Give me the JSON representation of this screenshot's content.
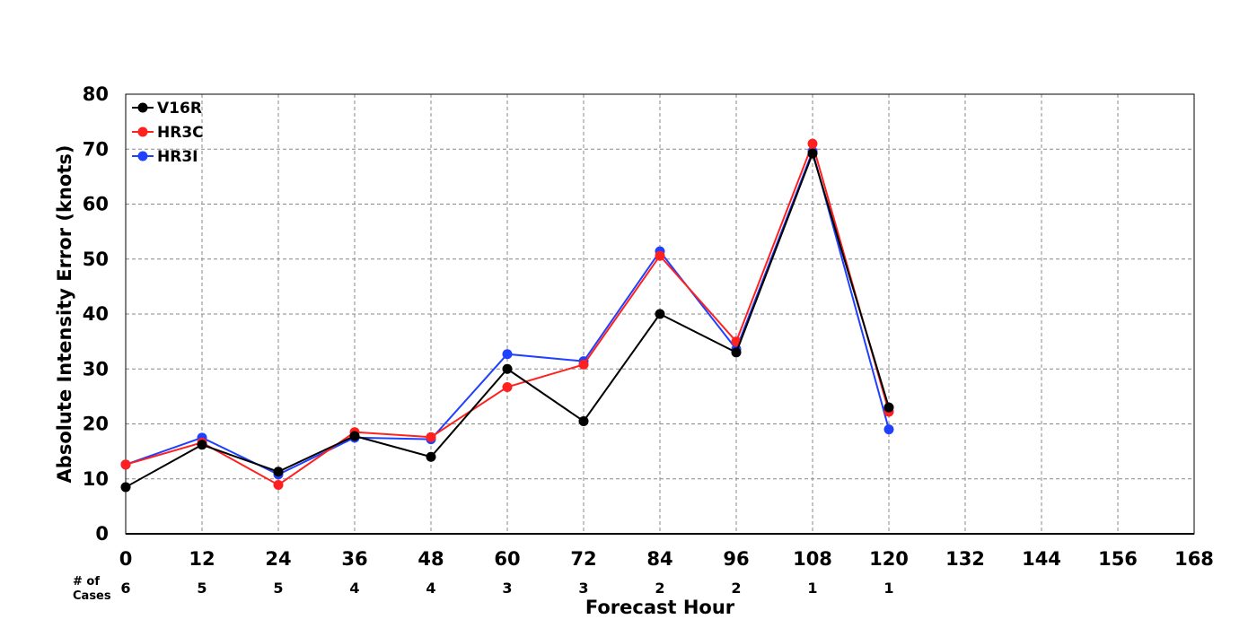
{
  "chart_data": {
    "type": "line",
    "title": "",
    "xlabel": "Forecast Hour",
    "ylabel": "Absolute Intensity Error (knots)",
    "xlim": [
      0,
      168
    ],
    "ylim": [
      0,
      80
    ],
    "x_ticks": [
      "0",
      "12",
      "24",
      "36",
      "48",
      "60",
      "72",
      "84",
      "96",
      "108",
      "120",
      "132",
      "144",
      "156",
      "168"
    ],
    "y_ticks": [
      "0",
      "10",
      "20",
      "30",
      "40",
      "50",
      "60",
      "70",
      "80"
    ],
    "grid": true,
    "legend_position": "top-left",
    "x": [
      0,
      12,
      24,
      36,
      48,
      60,
      72,
      84,
      96,
      108,
      120
    ],
    "series": [
      {
        "name": "V16R",
        "color": "#000000",
        "values": [
          8.5,
          16.2,
          11.3,
          17.8,
          14.0,
          30.0,
          20.5,
          40.0,
          33.0,
          69.2,
          23.0
        ]
      },
      {
        "name": "HR3C",
        "color": "#ff2020",
        "values": [
          12.6,
          16.6,
          8.9,
          18.5,
          17.6,
          26.7,
          30.8,
          50.6,
          35.0,
          71.0,
          22.2
        ]
      },
      {
        "name": "HR3I",
        "color": "#2040ff",
        "values": [
          12.6,
          17.5,
          10.8,
          17.5,
          17.2,
          32.7,
          31.4,
          51.4,
          33.6,
          69.6,
          19.0
        ]
      }
    ],
    "cases_caption": "# of Cases",
    "cases_caption_lines": [
      "# of",
      "Cases"
    ],
    "cases": [
      "6",
      "5",
      "5",
      "4",
      "4",
      "3",
      "3",
      "2",
      "2",
      "1",
      "1"
    ]
  }
}
